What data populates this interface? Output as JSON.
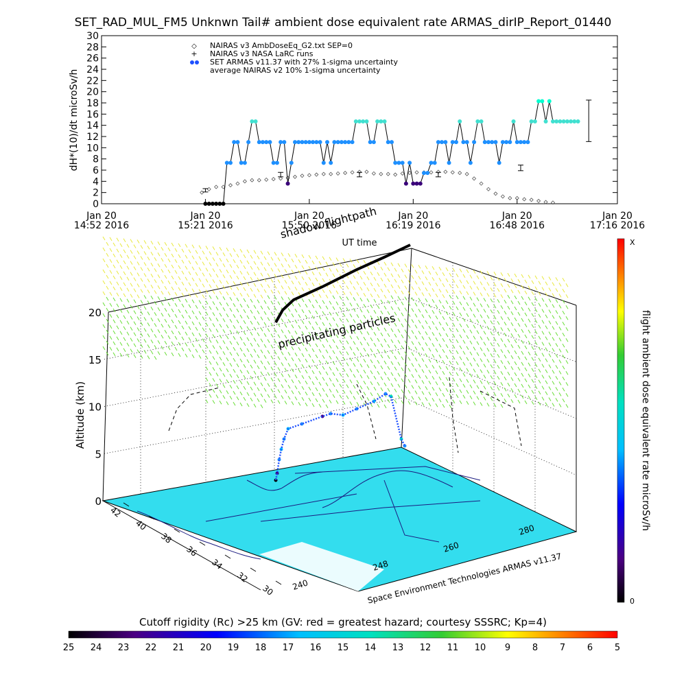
{
  "page_title": "SET_RAD_MUL_FM5 Unknwn Tail#  ambient dose equivalent rate ARMAS_dirIP_Report_01440",
  "colors": {
    "nairas_marker": "#555555",
    "armas_low": "#1e90ff",
    "armas_mid": "#40e0d0",
    "armas_high": "#00ffd0",
    "armas_dark": "#3a007a",
    "ground": "#33ddee",
    "flightpath": "#000000",
    "particles_high": "#e8e83a",
    "particles_low": "#66dd33"
  },
  "chart_data": [
    {
      "type": "scatter",
      "ylabel": "dH*(10)/dt microSv/h",
      "xlabel": "UT time",
      "ylim": [
        0,
        30
      ],
      "yticks": [
        "0",
        "2",
        "4",
        "6",
        "8",
        "10",
        "12",
        "14",
        "16",
        "18",
        "20",
        "22",
        "24",
        "26",
        "28",
        "30"
      ],
      "xticks": [
        {
          "t": 0,
          "l1": "Jan 20",
          "l2": "14:52 2016"
        },
        {
          "t": 29,
          "l1": "Jan 20",
          "l2": "15:21 2016"
        },
        {
          "t": 58,
          "l1": "Jan 20",
          "l2": "15:50 2016"
        },
        {
          "t": 87,
          "l1": "Jan 20",
          "l2": "16:19 2016"
        },
        {
          "t": 116,
          "l1": "Jan 20",
          "l2": "16:48 2016"
        },
        {
          "t": 144,
          "l1": "Jan 20",
          "l2": "17:16 2016"
        }
      ],
      "xlim": [
        0,
        144
      ],
      "legend": [
        {
          "symbol": "◇",
          "label": "NAIRAS v3 AmbDoseEq_G2.txt SEP=0"
        },
        {
          "symbol": "+",
          "label": "NAIRAS v3 NASA LaRC runs"
        },
        {
          "symbol": "●",
          "label": "SET ARMAS v11.37 with 27% 1-sigma uncertainty"
        },
        {
          "symbol": "",
          "label": "average NAIRAS v2 10% 1-sigma uncertainty"
        }
      ],
      "series": [
        {
          "name": "NAIRAS v3 AmbDoseEq_G2.txt SEP=0",
          "x": [
            28,
            30,
            32,
            34,
            36,
            38,
            40,
            42,
            44,
            46,
            48,
            50,
            52,
            54,
            56,
            58,
            60,
            62,
            64,
            66,
            68,
            70,
            72,
            74,
            76,
            78,
            80,
            82,
            84,
            86,
            88,
            90,
            92,
            94,
            96,
            98,
            100,
            102,
            104,
            106,
            108,
            110,
            112,
            114,
            116,
            118,
            120,
            122,
            124,
            126
          ],
          "y": [
            2,
            2.6,
            3,
            3,
            3.3,
            3.6,
            4,
            4.2,
            4.2,
            4.3,
            4.4,
            4.5,
            4.6,
            4.8,
            5,
            5.1,
            5.2,
            5.3,
            5.3,
            5.4,
            5.5,
            5.6,
            5.7,
            5.7,
            5.4,
            5.3,
            5.3,
            5.2,
            5.4,
            5.5,
            5.6,
            5.6,
            5.6,
            5.7,
            5.7,
            5.6,
            5.5,
            5.3,
            4.5,
            3.6,
            2.6,
            1.8,
            1.3,
            1.0,
            1.0,
            0.8,
            0.7,
            0.5,
            0.3,
            0.2
          ]
        },
        {
          "name": "NAIRAS v3 NASA LaRC runs",
          "x": [
            29,
            50,
            72,
            94,
            117,
            136
          ],
          "y": [
            2.4,
            5.2,
            5.2,
            5.2,
            6.4,
            14.8
          ],
          "err": [
            0.3,
            0.4,
            0.4,
            0.4,
            0.5,
            3.7
          ]
        },
        {
          "name": "SET ARMAS v11.37 with 27% 1-sigma uncertainty",
          "x": [
            29,
            30,
            31,
            32,
            33,
            34,
            35,
            36,
            37,
            38,
            39,
            40,
            41,
            42,
            43,
            44,
            45,
            46,
            47,
            48,
            49,
            50,
            51,
            52,
            53,
            54,
            55,
            56,
            57,
            58,
            59,
            60,
            61,
            62,
            63,
            64,
            65,
            66,
            67,
            68,
            69,
            70,
            71,
            72,
            73,
            74,
            75,
            76,
            77,
            78,
            79,
            80,
            81,
            82,
            83,
            84,
            85,
            86,
            87,
            88,
            89,
            90,
            91,
            92,
            93,
            94,
            95,
            96,
            97,
            98,
            99,
            100,
            101,
            102,
            103,
            104,
            105,
            106,
            107,
            108,
            109,
            110,
            111,
            112,
            113,
            114,
            115,
            116,
            117,
            118,
            119,
            120,
            121,
            122,
            123,
            124,
            125,
            126,
            127,
            128,
            129,
            130,
            131,
            132,
            133
          ],
          "y": [
            0,
            0,
            0,
            0,
            0,
            0,
            7.3,
            7.3,
            11,
            11,
            7.3,
            7.3,
            11,
            14.7,
            14.7,
            11,
            11,
            11,
            11,
            7.3,
            7.3,
            11,
            11,
            3.6,
            7.3,
            11,
            11,
            11,
            11,
            11,
            11,
            11,
            11,
            7.3,
            11,
            7.3,
            11,
            11,
            11,
            11,
            11,
            11,
            14.7,
            14.7,
            14.7,
            14.7,
            11,
            11,
            14.7,
            14.7,
            14.7,
            11,
            11,
            7.3,
            7.3,
            7.3,
            3.6,
            7.3,
            3.6,
            3.6,
            3.6,
            5.5,
            5.5,
            7.3,
            7.3,
            11,
            11,
            11,
            7.3,
            11,
            11,
            14.7,
            11,
            11,
            7.3,
            11,
            14.7,
            14.7,
            11,
            11,
            11,
            11,
            7.3,
            11,
            11,
            11,
            14.7,
            11,
            11,
            11,
            11,
            14.7,
            14.7,
            18.3,
            18.3,
            14.7,
            18.3,
            14.7,
            14.7,
            14.7,
            14.7,
            14.7,
            14.7,
            14.7,
            14.7
          ]
        }
      ]
    },
    {
      "type": "scatter",
      "zlabel": "Altitude (km)",
      "zticks": [
        "0",
        "5",
        "10",
        "15",
        "20"
      ],
      "lat_ticks": [
        "42",
        "40",
        "38",
        "36",
        "34",
        "32",
        "30"
      ],
      "lon_ticks": [
        "240",
        "248",
        "260",
        "280"
      ],
      "annotations": {
        "shadow": "shadow flightpath",
        "particles": "precipitating particles",
        "credit": "Space Environment Technologies ARMAS v11.37"
      },
      "flightpath": {
        "lon": [
          244.2,
          244.8,
          245.6,
          246.5,
          247.6,
          248.8,
          250.0,
          251.3,
          252.6,
          253.9,
          255.2,
          256.4
        ],
        "lat": [
          40.8,
          40.5,
          40.1,
          39.7,
          39.2,
          38.7,
          38.2,
          37.8,
          37.3,
          36.9,
          36.5,
          36.1
        ],
        "alt": [
          0.5,
          3,
          7,
          10.2,
          10.5,
          10.6,
          10.8,
          11,
          11.2,
          11.3,
          11.4,
          11.5
        ]
      }
    }
  ],
  "colorbar_right": {
    "label": "flight ambient dose equivalent rate microSv/h",
    "top": "X",
    "bottom": "0"
  },
  "colorbar_bottom": {
    "label": "Cutoff rigidity (Rc) >25 km (GV: red = greatest hazard; courtesy SSSRC; Kp=4)",
    "ticks": [
      "25",
      "24",
      "23",
      "22",
      "21",
      "20",
      "19",
      "18",
      "17",
      "16",
      "15",
      "14",
      "13",
      "12",
      "11",
      "10",
      "9",
      "8",
      "7",
      "6",
      "5"
    ]
  }
}
